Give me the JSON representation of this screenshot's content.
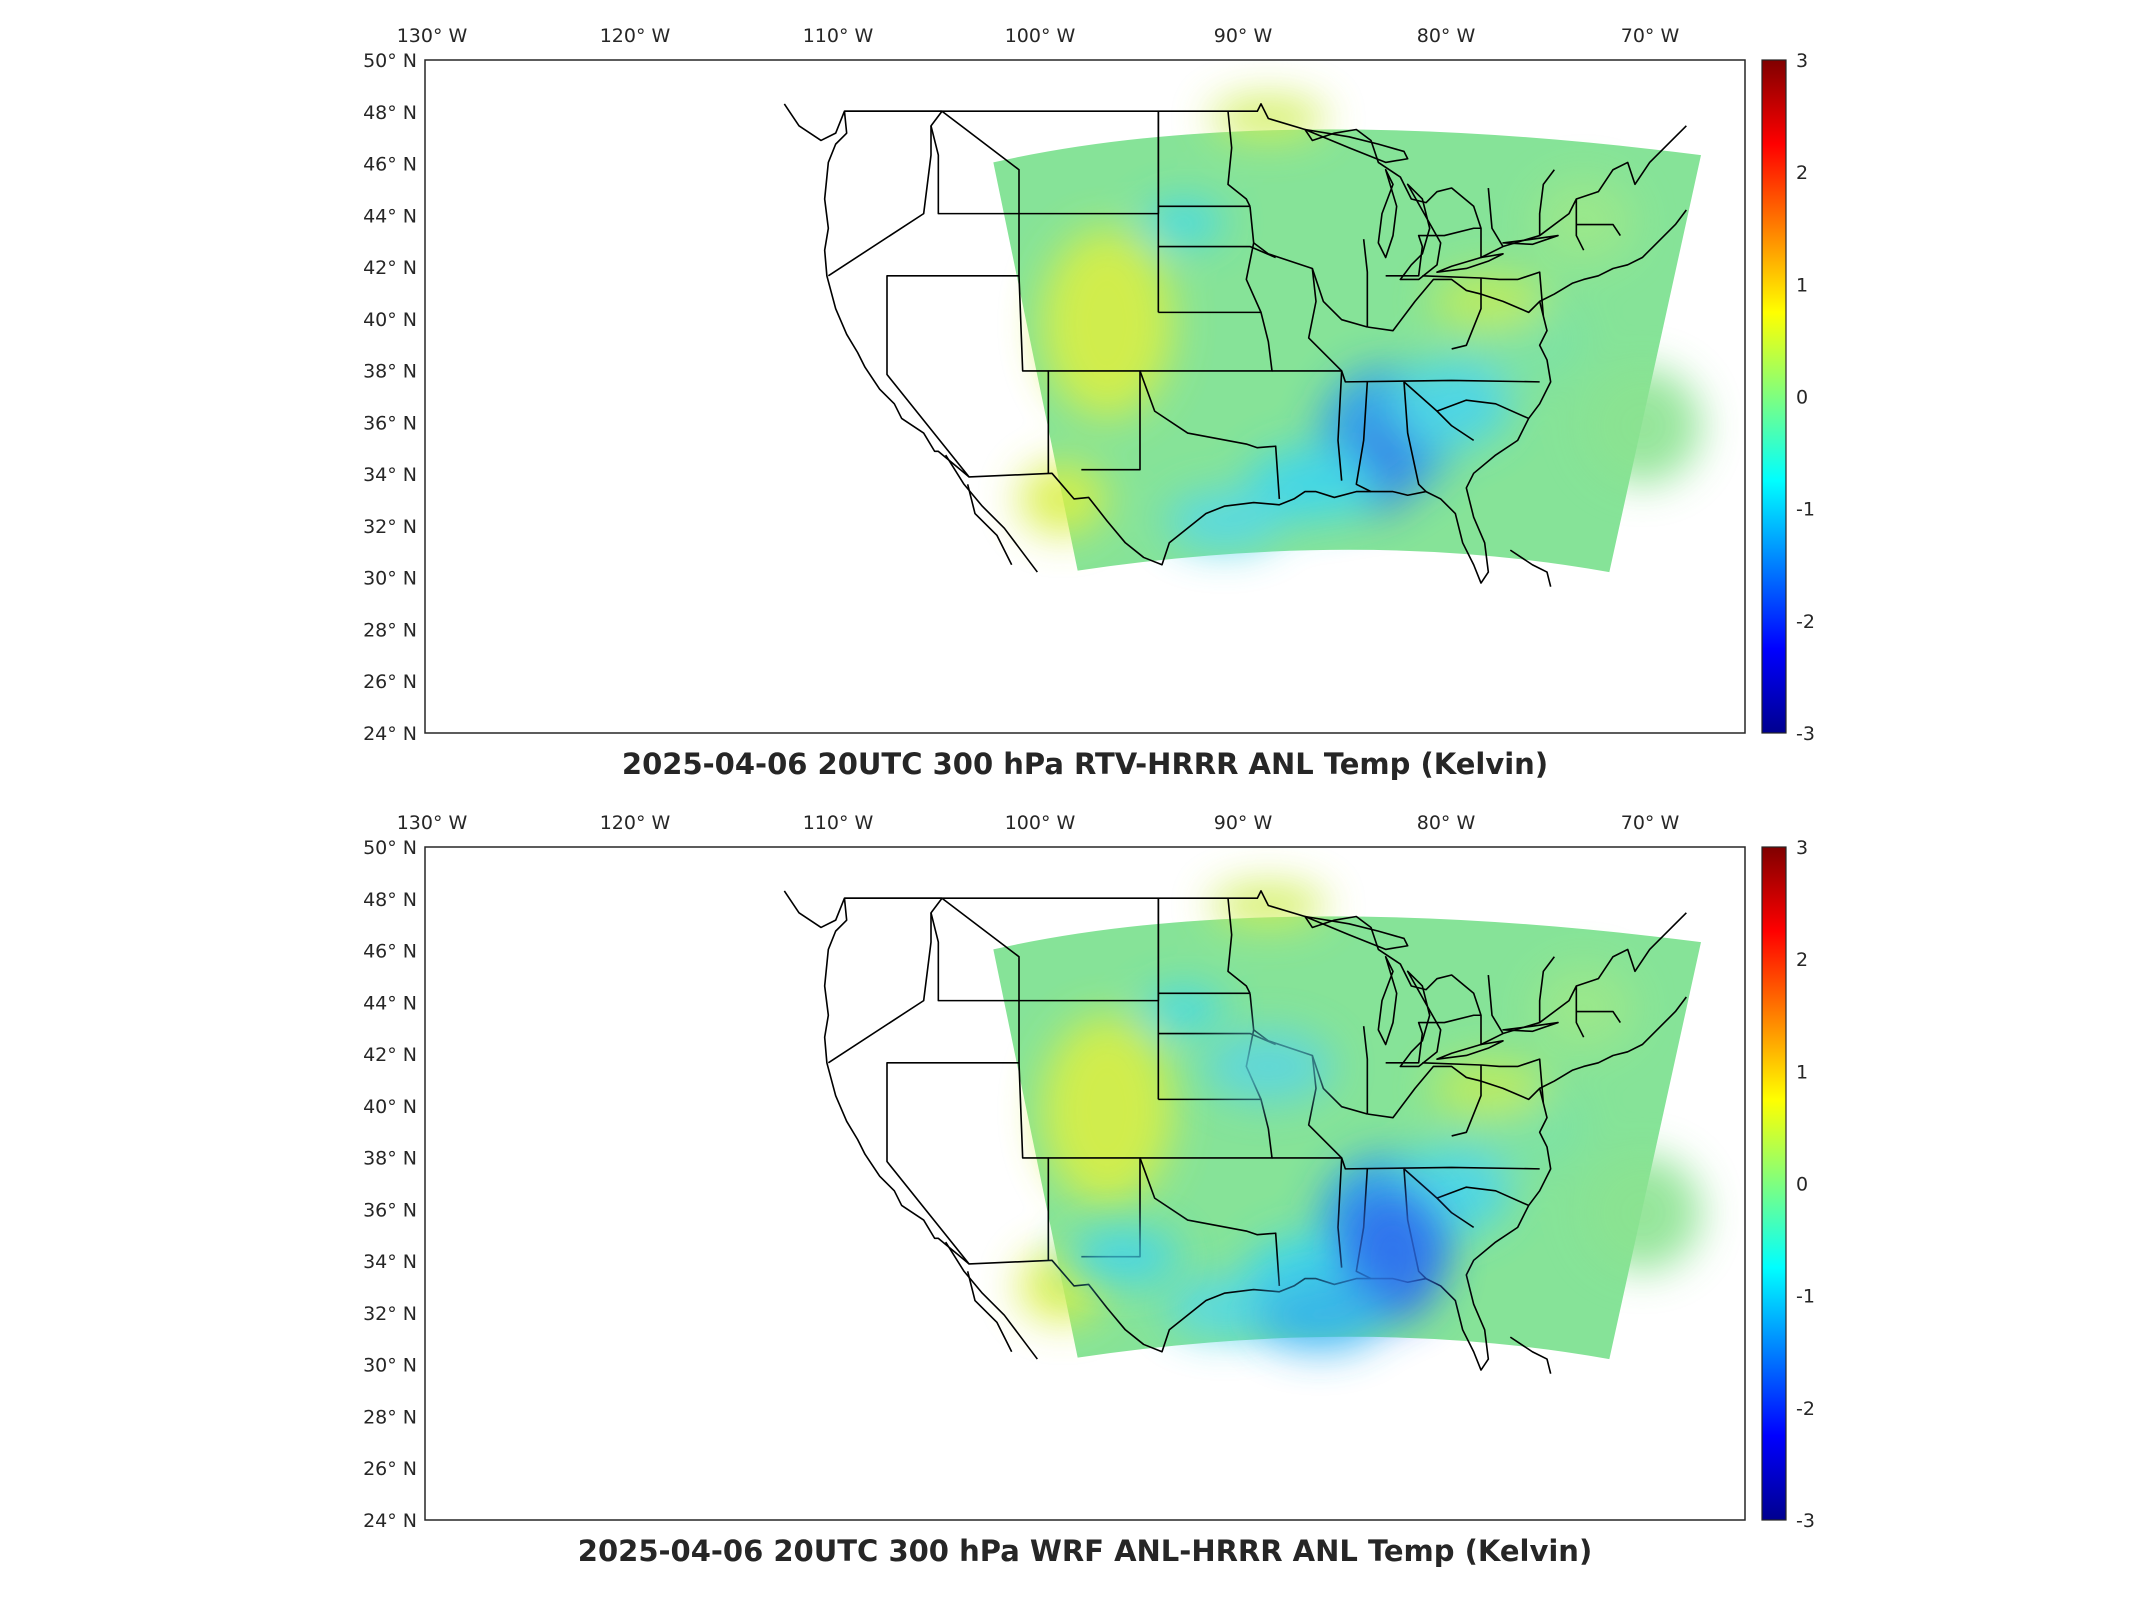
{
  "lon_ticks": [
    "130° W",
    "120° W",
    "110° W",
    "100° W",
    "90° W",
    "80° W",
    "70° W"
  ],
  "lat_ticks": [
    "50° N",
    "48° N",
    "46° N",
    "44° N",
    "42° N",
    "40° N",
    "38° N",
    "36° N",
    "34° N",
    "32° N",
    "30° N",
    "28° N",
    "26° N",
    "24° N"
  ],
  "colorbar": {
    "ticks": [
      "3",
      "2",
      "1",
      "0",
      "-1",
      "-2",
      "-3"
    ],
    "range": [
      -3,
      3
    ],
    "colormap": "jet"
  },
  "panels": [
    {
      "title": "2025-04-06 20UTC 300 hPa RTV-HRRR ANL Temp (Kelvin)"
    },
    {
      "title": "2025-04-06 20UTC 300 hPa WRF ANL-HRRR ANL Temp (Kelvin)"
    }
  ],
  "colors": {
    "field_base": "#6fe08a",
    "warm": "#d8f040",
    "cool": "#30d8f0",
    "cold": "#2f7ff0",
    "coldest": "#1a3fd8"
  }
}
